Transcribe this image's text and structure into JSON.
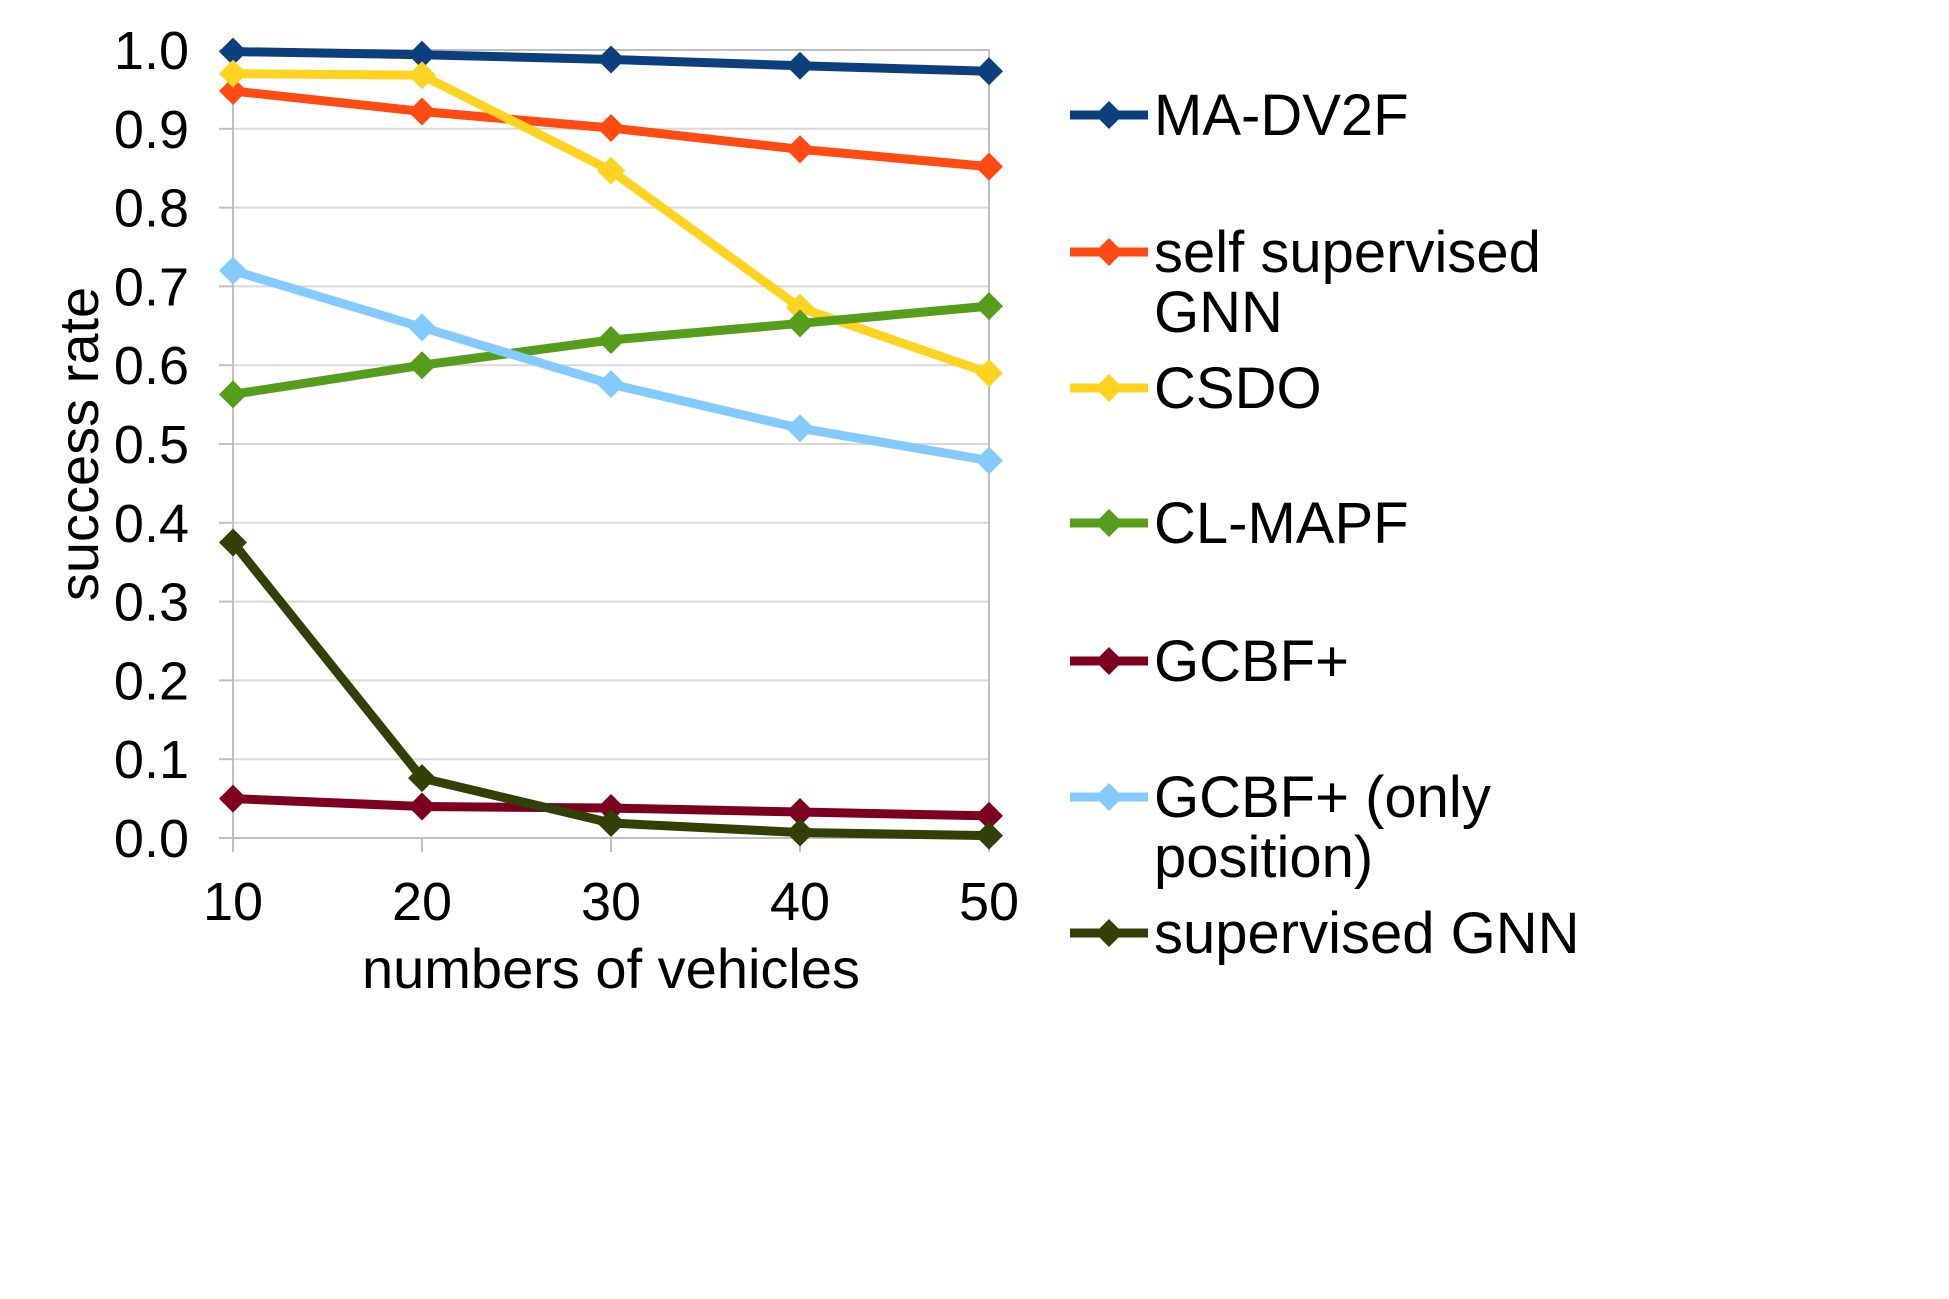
{
  "chart_data": {
    "type": "line",
    "title": "",
    "xlabel": "numbers of vehicles",
    "ylabel": "success rate",
    "x": [
      10,
      20,
      30,
      40,
      50
    ],
    "xticks": [
      "10",
      "20",
      "30",
      "40",
      "50"
    ],
    "ylim": [
      0.0,
      1.0
    ],
    "yticks": [
      "0.0",
      "0.1",
      "0.2",
      "0.3",
      "0.4",
      "0.5",
      "0.6",
      "0.7",
      "0.8",
      "0.9",
      "1.0"
    ],
    "grid": true,
    "legend_position": "right",
    "series": [
      {
        "name": "MA-DV2F",
        "legend_lines": [
          "MA-DV2F"
        ],
        "color": "#0b3f7d",
        "values": [
          0.998,
          0.994,
          0.988,
          0.98,
          0.973
        ]
      },
      {
        "name": "self supervised GNN",
        "legend_lines": [
          "self supervised",
          "GNN"
        ],
        "color": "#ff4a12",
        "values": [
          0.948,
          0.922,
          0.901,
          0.874,
          0.852
        ]
      },
      {
        "name": "CSDO",
        "legend_lines": [
          "CSDO"
        ],
        "color": "#ffd320",
        "values": [
          0.97,
          0.968,
          0.847,
          0.673,
          0.59
        ]
      },
      {
        "name": "CL-MAPF",
        "legend_lines": [
          "CL-MAPF"
        ],
        "color": "#579d1c",
        "values": [
          0.563,
          0.6,
          0.632,
          0.653,
          0.675
        ]
      },
      {
        "name": "GCBF+",
        "legend_lines": [
          "GCBF+"
        ],
        "color": "#7e0021",
        "values": [
          0.05,
          0.04,
          0.038,
          0.033,
          0.028
        ]
      },
      {
        "name": "GCBF+ (only position)",
        "legend_lines": [
          "GCBF+ (only",
          "position)"
        ],
        "color": "#83caff",
        "values": [
          0.72,
          0.648,
          0.576,
          0.52,
          0.479
        ]
      },
      {
        "name": "supervised GNN",
        "legend_lines": [
          "supervised GNN"
        ],
        "color": "#314004",
        "values": [
          0.375,
          0.076,
          0.019,
          0.007,
          0.003
        ]
      }
    ]
  }
}
